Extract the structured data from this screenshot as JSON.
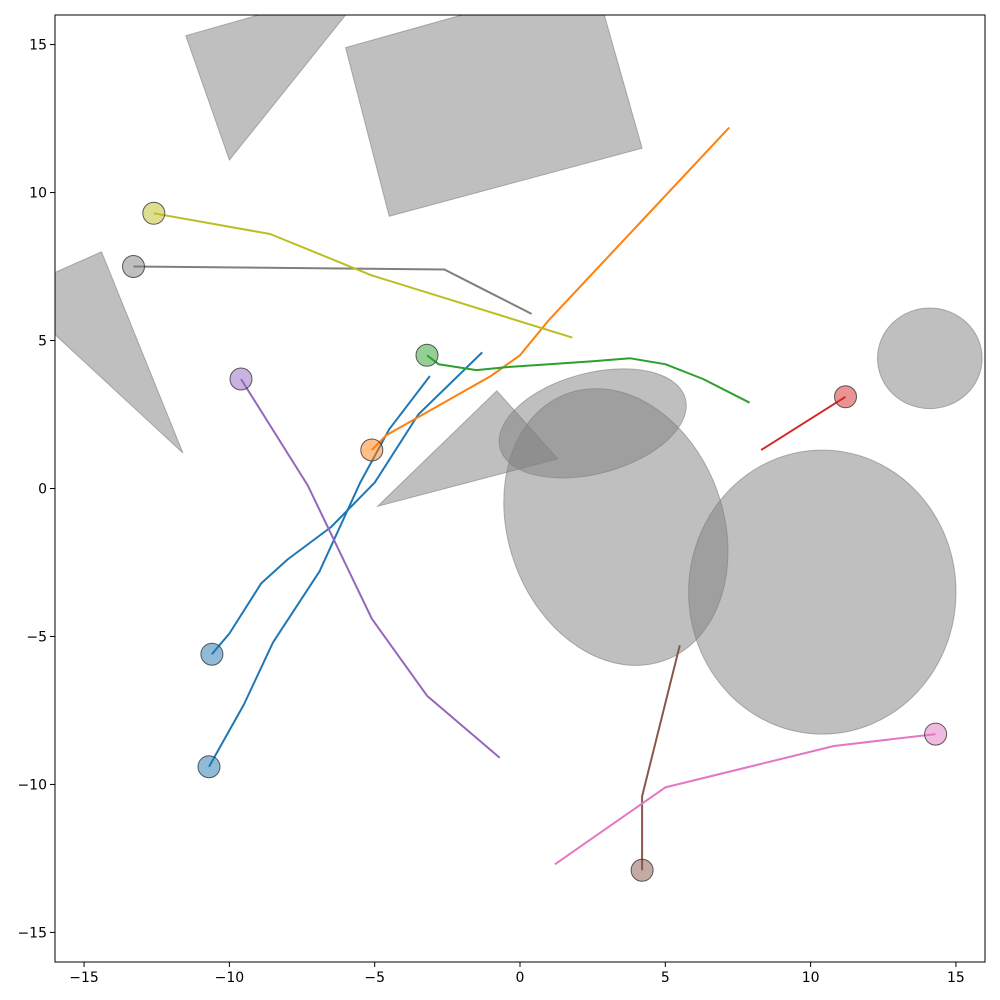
{
  "chart_data": {
    "type": "line",
    "title": "",
    "xlabel": "",
    "ylabel": "",
    "xlim": [
      -16,
      16
    ],
    "ylim": [
      -16,
      16
    ],
    "x_ticks": [
      -15,
      -10,
      -5,
      0,
      5,
      10,
      15
    ],
    "y_ticks": [
      -15,
      -10,
      -5,
      0,
      5,
      10,
      15
    ],
    "x_tick_labels": [
      "−15",
      "−10",
      "−5",
      "0",
      "5",
      "10",
      "15"
    ],
    "y_tick_labels": [
      "−15",
      "−10",
      "−5",
      "0",
      "5",
      "10",
      "15"
    ],
    "grid": false,
    "legend": "none",
    "obstacles": {
      "color": "#808080",
      "polygons": [
        {
          "points": [
            [
              -11.5,
              15.3
            ],
            [
              -10.0,
              11.1
            ],
            [
              -6.0,
              16.0
            ],
            [
              -9.0,
              16.0
            ]
          ]
        },
        {
          "points": [
            [
              -6.0,
              14.9
            ],
            [
              -4.5,
              9.2
            ],
            [
              4.2,
              11.5
            ],
            [
              2.9,
              16.0
            ],
            [
              -2.0,
              16.0
            ]
          ]
        },
        {
          "points": [
            [
              -16.0,
              7.3
            ],
            [
              -14.4,
              8.0
            ],
            [
              -11.6,
              1.2
            ],
            [
              -16.0,
              5.2
            ]
          ]
        },
        {
          "points": [
            [
              -4.9,
              -0.6
            ],
            [
              -0.8,
              3.3
            ],
            [
              1.3,
              1.0
            ]
          ]
        }
      ],
      "ellipses": [
        {
          "cx": 2.5,
          "cy": 2.2,
          "rx": 3.3,
          "ry": 1.7,
          "angle": 15
        },
        {
          "cx": 3.3,
          "cy": -1.3,
          "rx": 3.7,
          "ry": 4.8,
          "angle": 20
        },
        {
          "cx": 10.4,
          "cy": -3.5,
          "rx": 4.6,
          "ry": 4.8,
          "angle": 0
        },
        {
          "cx": 14.1,
          "cy": 4.4,
          "rx": 1.8,
          "ry": 1.7,
          "angle": 0
        }
      ]
    },
    "agents": [
      {
        "color": "#1f77b4",
        "start": [
          -10.6,
          -5.6
        ],
        "path": [
          [
            -10.6,
            -5.6
          ],
          [
            -10.0,
            -4.9
          ],
          [
            -8.9,
            -3.2
          ],
          [
            -8.0,
            -2.4
          ],
          [
            -6.5,
            -1.3
          ],
          [
            -5.0,
            0.2
          ],
          [
            -3.5,
            2.5
          ],
          [
            -1.3,
            4.6
          ]
        ]
      },
      {
        "color": "#1f77b4",
        "start": [
          -10.7,
          -9.4
        ],
        "path": [
          [
            -10.7,
            -9.4
          ],
          [
            -9.5,
            -7.3
          ],
          [
            -8.5,
            -5.2
          ],
          [
            -6.9,
            -2.8
          ],
          [
            -5.5,
            0.2
          ],
          [
            -4.5,
            2.0
          ],
          [
            -3.1,
            3.8
          ]
        ]
      },
      {
        "color": "#ff7f0e",
        "start": [
          -5.1,
          1.3
        ],
        "path": [
          [
            -5.1,
            1.3
          ],
          [
            -4.6,
            1.8
          ],
          [
            -1.0,
            3.8
          ],
          [
            0.0,
            4.5
          ],
          [
            1.0,
            5.7
          ],
          [
            7.2,
            12.2
          ]
        ]
      },
      {
        "color": "#2ca02c",
        "start": [
          -3.2,
          4.5
        ],
        "path": [
          [
            -3.2,
            4.5
          ],
          [
            -2.8,
            4.2
          ],
          [
            -1.5,
            4.0
          ],
          [
            -0.5,
            4.1
          ],
          [
            1.0,
            4.2
          ],
          [
            2.5,
            4.3
          ],
          [
            3.8,
            4.4
          ],
          [
            5.0,
            4.2
          ],
          [
            6.3,
            3.7
          ],
          [
            7.9,
            2.9
          ]
        ]
      },
      {
        "color": "#d62728",
        "start": [
          11.2,
          3.1
        ],
        "path": [
          [
            11.2,
            3.1
          ],
          [
            8.3,
            1.3
          ]
        ]
      },
      {
        "color": "#9467bd",
        "start": [
          -9.6,
          3.7
        ],
        "path": [
          [
            -9.6,
            3.7
          ],
          [
            -7.3,
            0.1
          ],
          [
            -5.1,
            -4.4
          ],
          [
            -3.2,
            -7.0
          ],
          [
            -0.7,
            -9.1
          ]
        ]
      },
      {
        "color": "#8c564b",
        "start": [
          4.2,
          -12.9
        ],
        "path": [
          [
            4.2,
            -12.9
          ],
          [
            4.2,
            -10.4
          ],
          [
            5.5,
            -5.3
          ]
        ]
      },
      {
        "color": "#e377c2",
        "start": [
          14.3,
          -8.3
        ],
        "path": [
          [
            14.3,
            -8.3
          ],
          [
            10.8,
            -8.7
          ],
          [
            5.0,
            -10.1
          ],
          [
            1.2,
            -12.7
          ]
        ]
      },
      {
        "color": "#7f7f7f",
        "start": [
          -13.3,
          7.5
        ],
        "path": [
          [
            -13.3,
            7.5
          ],
          [
            -2.6,
            7.4
          ],
          [
            -1.6,
            6.9
          ],
          [
            0.4,
            5.9
          ]
        ]
      },
      {
        "color": "#bcbd22",
        "start": [
          -12.6,
          9.3
        ],
        "path": [
          [
            -12.6,
            9.3
          ],
          [
            -8.6,
            8.6
          ],
          [
            -5.1,
            7.2
          ],
          [
            1.8,
            5.1
          ]
        ]
      }
    ]
  }
}
